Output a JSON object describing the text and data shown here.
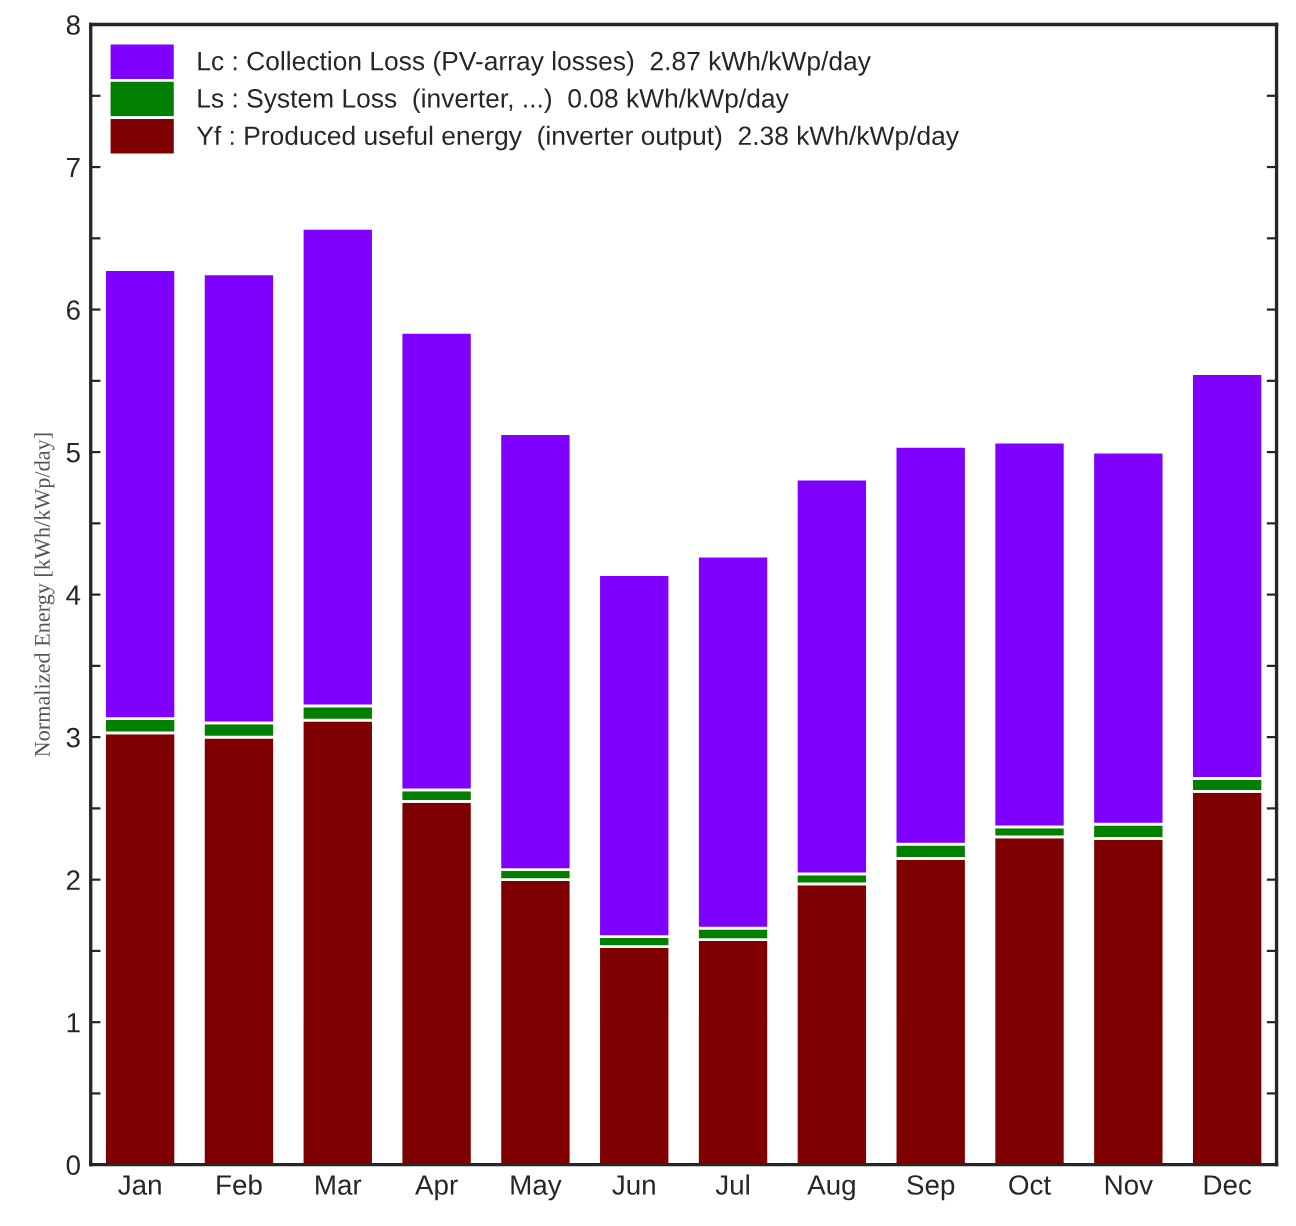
{
  "chart_data": {
    "type": "bar",
    "stacked": true,
    "ylabel": "Normalized Energy [kWh/kWp/day]",
    "categories": [
      "Jan",
      "Feb",
      "Mar",
      "Apr",
      "May",
      "Jun",
      "Jul",
      "Aug",
      "Sep",
      "Oct",
      "Nov",
      "Dec"
    ],
    "series": [
      {
        "name": "Yf : Produced useful energy  (inverter output)  2.38 kWh/kWp/day",
        "color": "#7f0000",
        "values": [
          3.03,
          3.0,
          3.12,
          2.55,
          2.0,
          1.53,
          1.58,
          1.97,
          2.15,
          2.3,
          2.29,
          2.62
        ]
      },
      {
        "name": "Ls : System Loss  (inverter, ...)  0.08 kWh/kWp/day",
        "color": "#007f00",
        "values": [
          0.1,
          0.1,
          0.1,
          0.08,
          0.07,
          0.07,
          0.08,
          0.07,
          0.1,
          0.07,
          0.1,
          0.09
        ]
      },
      {
        "name": "Lc : Collection Loss (PV-array losses)  2.87 kWh/kWp/day",
        "color": "#7f00ff",
        "values": [
          3.15,
          3.15,
          3.35,
          3.21,
          3.06,
          2.54,
          2.61,
          2.77,
          2.79,
          2.7,
          2.61,
          2.84
        ]
      }
    ],
    "ylim": [
      0,
      8
    ],
    "yticks": [
      0,
      {
        "value": 0.5,
        "label": null
      },
      1,
      {
        "value": 1.5,
        "label": null
      },
      2,
      {
        "value": 2.5,
        "label": null
      },
      3,
      {
        "value": 3.5,
        "label": null
      },
      4,
      {
        "value": 4.5,
        "label": null
      },
      5,
      {
        "value": 5.5,
        "label": null
      },
      6,
      {
        "value": 6.5,
        "label": null
      },
      7,
      {
        "value": 7.5,
        "label": null
      },
      8
    ],
    "grid": false,
    "legend": "top left"
  }
}
